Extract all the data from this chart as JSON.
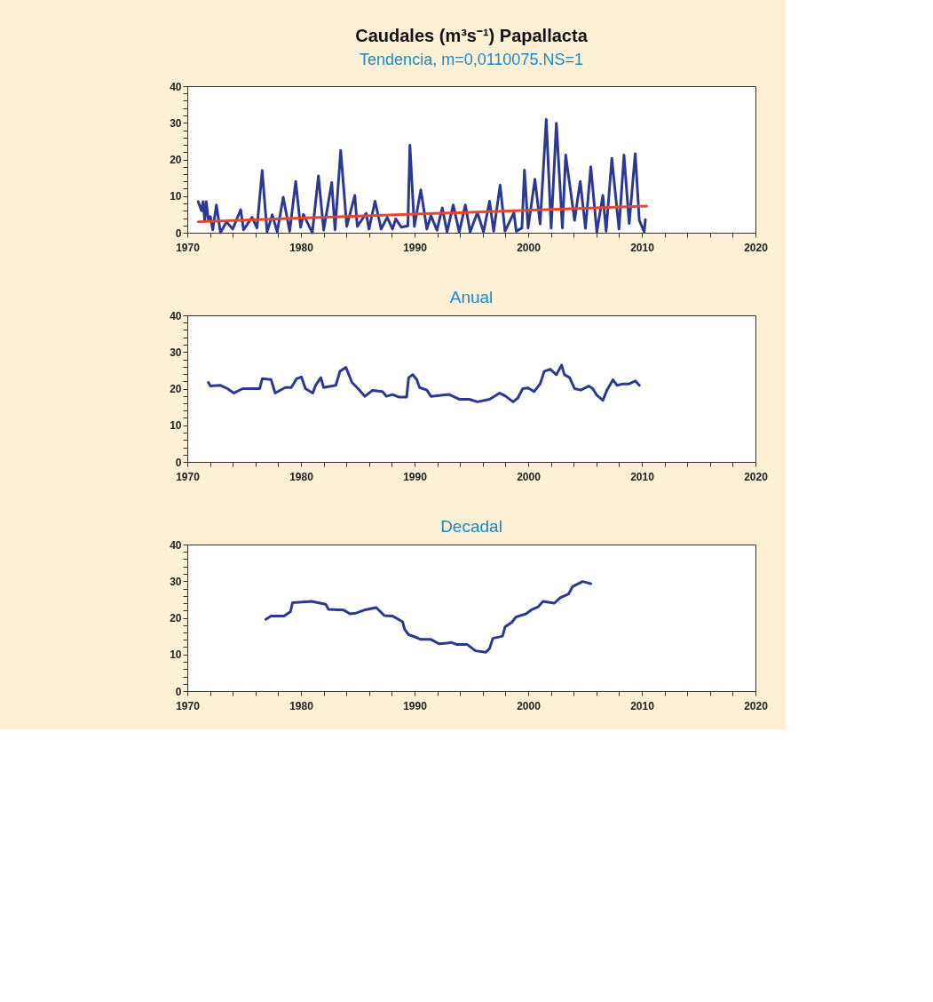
{
  "chart_data": [
    {
      "type": "line",
      "title": "Caudales (m³s⁻¹) Papallacta",
      "subtitle": "Tendencia, m=0,0110075.NS=1",
      "xlim": [
        1970,
        2020
      ],
      "ylim": [
        0,
        40
      ],
      "grid": false,
      "line_style": "solid",
      "marker": "none",
      "xticks": [
        1970,
        {
          "value": 1972,
          "label": null
        },
        {
          "value": 1974,
          "label": null
        },
        {
          "value": 1976,
          "label": null
        },
        {
          "value": 1978,
          "label": null
        },
        1980,
        {
          "value": 1982,
          "label": null
        },
        {
          "value": 1984,
          "label": null
        },
        {
          "value": 1986,
          "label": null
        },
        {
          "value": 1988,
          "label": null
        },
        1990,
        {
          "value": 1992,
          "label": null
        },
        {
          "value": 1994,
          "label": null
        },
        {
          "value": 1996,
          "label": null
        },
        {
          "value": 1998,
          "label": null
        },
        2000,
        {
          "value": 2002,
          "label": null
        },
        {
          "value": 2004,
          "label": null
        },
        {
          "value": 2006,
          "label": null
        },
        {
          "value": 2008,
          "label": null
        },
        2010,
        {
          "value": 2012,
          "label": null
        },
        {
          "value": 2014,
          "label": null
        },
        {
          "value": 2016,
          "label": null
        },
        {
          "value": 2018,
          "label": null
        },
        2020
      ],
      "yticks": [
        0,
        {
          "value": 2,
          "label": null
        },
        {
          "value": 4,
          "label": null
        },
        {
          "value": 6,
          "label": null
        },
        {
          "value": 8,
          "label": null
        },
        10,
        {
          "value": 12,
          "label": null
        },
        {
          "value": 14,
          "label": null
        },
        {
          "value": 16,
          "label": null
        },
        {
          "value": 18,
          "label": null
        },
        20,
        {
          "value": 22,
          "label": null
        },
        {
          "value": 24,
          "label": null
        },
        {
          "value": 26,
          "label": null
        },
        {
          "value": 28,
          "label": null
        },
        30,
        {
          "value": 32,
          "label": null
        },
        {
          "value": 34,
          "label": null
        },
        {
          "value": 36,
          "label": null
        },
        {
          "value": 38,
          "label": null
        },
        40
      ],
      "series": [
        {
          "color": "#2b3990",
          "x": [
            1970.96,
            1971.25,
            1971.39,
            1971.53,
            1971.67,
            1971.85,
            1972.03,
            1972.24,
            1972.56,
            1972.92,
            1973.45,
            1973.99,
            1974.7,
            1974.95,
            1975.7,
            1976.13,
            1976.59,
            1977.02,
            1977.48,
            1977.91,
            1978.44,
            1979.01,
            1979.54,
            1979.97,
            1980.22,
            1981.0,
            1981.54,
            1982.0,
            1982.71,
            1983.0,
            1983.5,
            1984.03,
            1984.74,
            1984.96,
            1985.74,
            1985.99,
            1986.52,
            1987.06,
            1987.59,
            1988.06,
            1988.34,
            1988.84,
            1989.41,
            1989.59,
            1989.98,
            1990.55,
            1991.08,
            1991.44,
            1991.97,
            1992.44,
            1992.86,
            1993.4,
            1993.93,
            1994.47,
            1994.89,
            1995.53,
            1996.07,
            1996.6,
            1996.96,
            1997.53,
            1997.96,
            1998.74,
            1998.95,
            1999.45,
            1999.67,
            1999.99,
            2000.59,
            2001.05,
            2001.59,
            2002.02,
            2002.48,
            2003.01,
            2003.3,
            2004.08,
            2004.58,
            2005.04,
            2005.51,
            2006.04,
            2006.57,
            2006.86,
            2007.36,
            2007.99,
            2008.43,
            2008.89,
            2009.42,
            2009.78,
            2010.21,
            2010.31
          ],
          "values": [
            8.5,
            6,
            8.5,
            3.4,
            8.5,
            3.4,
            4.4,
            0.8,
            7.6,
            0,
            3,
            1,
            6.3,
            0.8,
            4.2,
            1.3,
            17,
            0.2,
            4.9,
            0.2,
            9.7,
            0.4,
            14,
            1.5,
            5,
            0,
            15.5,
            0.7,
            13.7,
            0.8,
            22.5,
            1.7,
            10.2,
            1.7,
            5.3,
            1,
            8.6,
            1,
            4.2,
            1,
            3.8,
            1.5,
            1.9,
            23.9,
            1.7,
            11.7,
            1,
            4.7,
            0.7,
            6.8,
            0.2,
            7.6,
            0.2,
            7.6,
            0.2,
            5.5,
            0.2,
            8.6,
            0.4,
            13,
            0.4,
            5.5,
            0.4,
            1.3,
            17.1,
            1.3,
            14.6,
            2.4,
            30.9,
            1.2,
            29.9,
            1.3,
            21.2,
            3.4,
            14,
            1.2,
            18,
            0.2,
            10.2,
            0.4,
            20.3,
            1,
            21.2,
            2.5,
            21.6,
            3.4,
            0.2,
            3.6
          ]
        },
        {
          "color": "#e8452c",
          "x": [
            1970.96,
            2010.42
          ],
          "values": [
            3.0,
            7.3
          ]
        }
      ]
    },
    {
      "type": "line",
      "title": "Anual",
      "xlim": [
        1970,
        2020
      ],
      "ylim": [
        0,
        40
      ],
      "grid": false,
      "line_style": "solid",
      "marker": "none",
      "xticks": [
        1970,
        {
          "value": 1972,
          "label": null
        },
        {
          "value": 1974,
          "label": null
        },
        {
          "value": 1976,
          "label": null
        },
        {
          "value": 1978,
          "label": null
        },
        1980,
        {
          "value": 1982,
          "label": null
        },
        {
          "value": 1984,
          "label": null
        },
        {
          "value": 1986,
          "label": null
        },
        {
          "value": 1988,
          "label": null
        },
        1990,
        {
          "value": 1992,
          "label": null
        },
        {
          "value": 1994,
          "label": null
        },
        {
          "value": 1996,
          "label": null
        },
        {
          "value": 1998,
          "label": null
        },
        2000,
        {
          "value": 2002,
          "label": null
        },
        {
          "value": 2004,
          "label": null
        },
        {
          "value": 2006,
          "label": null
        },
        {
          "value": 2008,
          "label": null
        },
        2010,
        {
          "value": 2012,
          "label": null
        },
        {
          "value": 2014,
          "label": null
        },
        {
          "value": 2016,
          "label": null
        },
        {
          "value": 2018,
          "label": null
        },
        2020
      ],
      "yticks": [
        0,
        {
          "value": 2,
          "label": null
        },
        {
          "value": 4,
          "label": null
        },
        {
          "value": 6,
          "label": null
        },
        {
          "value": 8,
          "label": null
        },
        10,
        {
          "value": 12,
          "label": null
        },
        {
          "value": 14,
          "label": null
        },
        {
          "value": 16,
          "label": null
        },
        {
          "value": 18,
          "label": null
        },
        20,
        {
          "value": 22,
          "label": null
        },
        {
          "value": 24,
          "label": null
        },
        {
          "value": 26,
          "label": null
        },
        {
          "value": 28,
          "label": null
        },
        30,
        {
          "value": 32,
          "label": null
        },
        {
          "value": 34,
          "label": null
        },
        {
          "value": 36,
          "label": null
        },
        {
          "value": 38,
          "label": null
        },
        40
      ],
      "series": [
        {
          "color": "#2b3990",
          "x": [
            1971.85,
            1972.03,
            1972.92,
            1973.53,
            1974.1,
            1974.88,
            1976.37,
            1976.59,
            1977.37,
            1977.73,
            1978.62,
            1979.15,
            1979.62,
            1980.04,
            1980.4,
            1981.04,
            1981.29,
            1981.75,
            1982.0,
            1983.07,
            1983.43,
            1983.96,
            1984.49,
            1985.03,
            1985.63,
            1986.28,
            1987.17,
            1987.52,
            1988.06,
            1988.59,
            1989.3,
            1989.48,
            1989.84,
            1990.19,
            1990.44,
            1991.08,
            1991.44,
            1993.04,
            1993.93,
            1994.82,
            1995.53,
            1996.6,
            1997.49,
            1998.03,
            1998.67,
            1999.1,
            1999.52,
            1999.99,
            2000.52,
            2001.05,
            2001.41,
            2001.94,
            2002.48,
            2002.94,
            2003.19,
            2003.65,
            2004.08,
            2004.62,
            2005.33,
            2005.68,
            2006.04,
            2006.57,
            2006.93,
            2007.46,
            2007.82,
            2008.35,
            2008.89,
            2009.42,
            2009.78
          ],
          "values": [
            21.7,
            20.7,
            20.9,
            20,
            18.8,
            20,
            20,
            22.7,
            22.5,
            18.8,
            20.3,
            20.3,
            22.7,
            23.2,
            20,
            18.8,
            20.9,
            23,
            20.3,
            20.9,
            24.7,
            25.8,
            21.7,
            20,
            17.9,
            19.5,
            19.2,
            17.9,
            18.4,
            17.7,
            17.7,
            23,
            23.8,
            22.5,
            20.3,
            19.6,
            17.9,
            18.4,
            17.1,
            17.1,
            16.4,
            17.1,
            18.8,
            17.9,
            16.4,
            17.5,
            20,
            20.2,
            19.2,
            21.3,
            24.7,
            25.3,
            23.8,
            26.4,
            23.8,
            23,
            20,
            19.6,
            20.7,
            20,
            18.2,
            16.8,
            19.6,
            22.4,
            20.9,
            21.3,
            21.3,
            22.1,
            20.9
          ]
        }
      ]
    },
    {
      "type": "line",
      "title": "Decadal",
      "xlim": [
        1970,
        2020
      ],
      "ylim": [
        0,
        40
      ],
      "grid": false,
      "line_style": "solid",
      "marker": "none",
      "xticks": [
        1970,
        {
          "value": 1972,
          "label": null
        },
        {
          "value": 1974,
          "label": null
        },
        {
          "value": 1976,
          "label": null
        },
        {
          "value": 1978,
          "label": null
        },
        1980,
        {
          "value": 1982,
          "label": null
        },
        {
          "value": 1984,
          "label": null
        },
        {
          "value": 1986,
          "label": null
        },
        {
          "value": 1988,
          "label": null
        },
        1990,
        {
          "value": 1992,
          "label": null
        },
        {
          "value": 1994,
          "label": null
        },
        {
          "value": 1996,
          "label": null
        },
        {
          "value": 1998,
          "label": null
        },
        2000,
        {
          "value": 2002,
          "label": null
        },
        {
          "value": 2004,
          "label": null
        },
        {
          "value": 2006,
          "label": null
        },
        {
          "value": 2008,
          "label": null
        },
        2010,
        {
          "value": 2012,
          "label": null
        },
        {
          "value": 2014,
          "label": null
        },
        {
          "value": 2016,
          "label": null
        },
        {
          "value": 2018,
          "label": null
        },
        2020
      ],
      "yticks": [
        0,
        {
          "value": 2,
          "label": null
        },
        {
          "value": 4,
          "label": null
        },
        {
          "value": 6,
          "label": null
        },
        {
          "value": 8,
          "label": null
        },
        10,
        {
          "value": 12,
          "label": null
        },
        {
          "value": 14,
          "label": null
        },
        {
          "value": 16,
          "label": null
        },
        {
          "value": 18,
          "label": null
        },
        20,
        {
          "value": 22,
          "label": null
        },
        {
          "value": 24,
          "label": null
        },
        {
          "value": 26,
          "label": null
        },
        {
          "value": 28,
          "label": null
        },
        30,
        {
          "value": 32,
          "label": null
        },
        {
          "value": 34,
          "label": null
        },
        {
          "value": 36,
          "label": null
        },
        {
          "value": 38,
          "label": null
        },
        40
      ],
      "series": [
        {
          "color": "#2b3990",
          "x": [
            1976.91,
            1977.37,
            1978.51,
            1979.08,
            1979.26,
            1980.93,
            1982.18,
            1982.43,
            1983.78,
            1984.32,
            1984.85,
            1985.56,
            1986.63,
            1987.34,
            1988.06,
            1988.95,
            1989.13,
            1989.48,
            1990.19,
            1990.55,
            1991.44,
            1992.15,
            1992.86,
            1993.22,
            1993.75,
            1994.64,
            1995.36,
            1996.25,
            1996.6,
            1996.89,
            1997.74,
            1997.96,
            1998.56,
            1998.92,
            1999.81,
            2000.34,
            2000.88,
            2001.3,
            2002.3,
            2002.83,
            2003.55,
            2003.9,
            2004.79,
            2005.51
          ],
          "values": [
            19.6,
            20.5,
            20.5,
            21.7,
            24.1,
            24.5,
            23.7,
            22.3,
            22.1,
            21.1,
            21.3,
            22.1,
            22.8,
            20.6,
            20.5,
            18.9,
            16.8,
            15.4,
            14.6,
            14.1,
            14.1,
            12.9,
            13.1,
            13.3,
            12.7,
            12.7,
            11,
            10.6,
            11.6,
            14.4,
            15,
            17.5,
            18.8,
            20.2,
            21.1,
            22.3,
            23,
            24.5,
            24,
            25.5,
            26.5,
            28.5,
            29.9,
            29.3
          ]
        }
      ]
    }
  ]
}
